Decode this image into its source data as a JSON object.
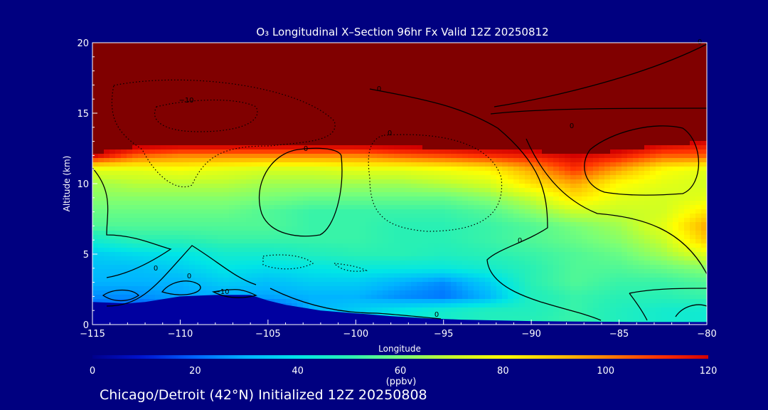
{
  "chart_data": {
    "type": "heatmap",
    "title": "O₃ Longitudinal X–Section 96hr  Fx Valid 12Z 20250812",
    "xlabel": "Longitude",
    "ylabel": "Altitude (km)",
    "xlim": [
      -115,
      -80
    ],
    "ylim": [
      0,
      20
    ],
    "xticks": [
      -115,
      -110,
      -105,
      -100,
      -95,
      -90,
      -85,
      -80
    ],
    "xtick_labels": [
      "−115",
      "−110",
      "−105",
      "−100",
      "−95",
      "−90",
      "−85",
      "−80"
    ],
    "yticks": [
      0,
      5,
      10,
      15,
      20
    ],
    "ytick_labels": [
      "0",
      "5",
      "10",
      "15",
      "20"
    ],
    "colorbar": {
      "label": "(ppbv)",
      "range": [
        0,
        120
      ],
      "ticks": [
        0,
        20,
        40,
        60,
        80,
        100,
        120
      ],
      "tick_labels": [
        "0",
        "20",
        "40",
        "60",
        "80",
        "100",
        "120"
      ],
      "colors": [
        "#00008c",
        "#0014d2",
        "#0064ff",
        "#00b4ff",
        "#00e6e6",
        "#28f0b4",
        "#78ff78",
        "#c8ff28",
        "#ffff00",
        "#ffc800",
        "#ff8200",
        "#ff3200",
        "#d20000",
        "#800000"
      ]
    },
    "contour_labels": [
      "0",
      "0",
      "0",
      "0",
      "0",
      "0",
      "0",
      "0",
      "−10",
      "−10",
      "0"
    ],
    "caption": "Chicago/Detroit (42°N) Initialized 12Z 20250808",
    "field": {
      "x": [
        -115,
        -112.5,
        -110,
        -107.5,
        -105,
        -102.5,
        -100,
        -97.5,
        -95,
        -92.5,
        -90,
        -87.5,
        -85,
        -82.5,
        -80
      ],
      "y": [
        0,
        1,
        2,
        3,
        4,
        5,
        6,
        7,
        8,
        9,
        10,
        11,
        12,
        13,
        14,
        15,
        16,
        17,
        18,
        19,
        20
      ],
      "values": [
        [
          3,
          5,
          8,
          8,
          8,
          30,
          35,
          42,
          45,
          48,
          50,
          52,
          48,
          45,
          44
        ],
        [
          18,
          15,
          20,
          12,
          15,
          30,
          35,
          40,
          45,
          48,
          48,
          52,
          48,
          45,
          44
        ],
        [
          25,
          25,
          28,
          28,
          28,
          30,
          30,
          25,
          22,
          30,
          48,
          52,
          50,
          50,
          52
        ],
        [
          30,
          30,
          30,
          35,
          32,
          35,
          35,
          30,
          25,
          35,
          50,
          55,
          52,
          52,
          55
        ],
        [
          32,
          32,
          35,
          40,
          38,
          40,
          42,
          42,
          42,
          45,
          50,
          55,
          55,
          58,
          62
        ],
        [
          35,
          38,
          40,
          45,
          45,
          48,
          50,
          50,
          48,
          50,
          52,
          55,
          58,
          65,
          75
        ],
        [
          45,
          50,
          50,
          52,
          52,
          52,
          52,
          50,
          50,
          52,
          55,
          58,
          62,
          70,
          90
        ],
        [
          55,
          55,
          55,
          55,
          55,
          52,
          52,
          50,
          50,
          52,
          55,
          60,
          65,
          75,
          95
        ],
        [
          58,
          58,
          58,
          58,
          55,
          52,
          52,
          52,
          52,
          55,
          62,
          70,
          70,
          72,
          85
        ],
        [
          62,
          62,
          62,
          62,
          60,
          58,
          58,
          58,
          58,
          62,
          70,
          85,
          75,
          72,
          75
        ],
        [
          65,
          68,
          68,
          68,
          65,
          65,
          65,
          65,
          68,
          72,
          85,
          95,
          80,
          75,
          72
        ],
        [
          75,
          75,
          78,
          75,
          72,
          72,
          75,
          75,
          78,
          82,
          95,
          110,
          95,
          80,
          75
        ],
        [
          120,
          105,
          100,
          100,
          100,
          100,
          100,
          105,
          108,
          112,
          115,
          120,
          115,
          105,
          105
        ],
        [
          130,
          130,
          130,
          130,
          130,
          130,
          130,
          130,
          130,
          130,
          130,
          130,
          130,
          125,
          120
        ],
        [
          140,
          140,
          140,
          140,
          140,
          140,
          140,
          140,
          140,
          140,
          140,
          140,
          140,
          140,
          140
        ],
        [
          140,
          140,
          140,
          140,
          140,
          140,
          140,
          140,
          140,
          140,
          140,
          140,
          140,
          140,
          140
        ],
        [
          140,
          140,
          140,
          140,
          140,
          140,
          140,
          140,
          140,
          140,
          140,
          140,
          140,
          140,
          140
        ],
        [
          140,
          140,
          140,
          140,
          140,
          140,
          140,
          140,
          140,
          140,
          140,
          140,
          140,
          140,
          140
        ],
        [
          140,
          140,
          140,
          140,
          140,
          140,
          140,
          140,
          140,
          140,
          140,
          140,
          140,
          140,
          140
        ],
        [
          140,
          140,
          140,
          140,
          140,
          140,
          140,
          140,
          140,
          140,
          140,
          140,
          140,
          140,
          140
        ],
        [
          140,
          140,
          140,
          140,
          140,
          140,
          140,
          140,
          140,
          140,
          140,
          140,
          140,
          140,
          140
        ]
      ]
    },
    "terrain": {
      "x": [
        -115,
        -113,
        -112,
        -110,
        -108,
        -106,
        -105,
        -104,
        -102,
        -100,
        -98,
        -96,
        -94,
        -92,
        -90,
        -88,
        -86,
        -84,
        -82,
        -80
      ],
      "y": [
        1.6,
        1.5,
        1.6,
        2.0,
        2.1,
        2.1,
        1.7,
        1.4,
        1.0,
        0.8,
        0.6,
        0.45,
        0.35,
        0.3,
        0.25,
        0.22,
        0.2,
        0.18,
        0.18,
        0.18
      ]
    }
  }
}
